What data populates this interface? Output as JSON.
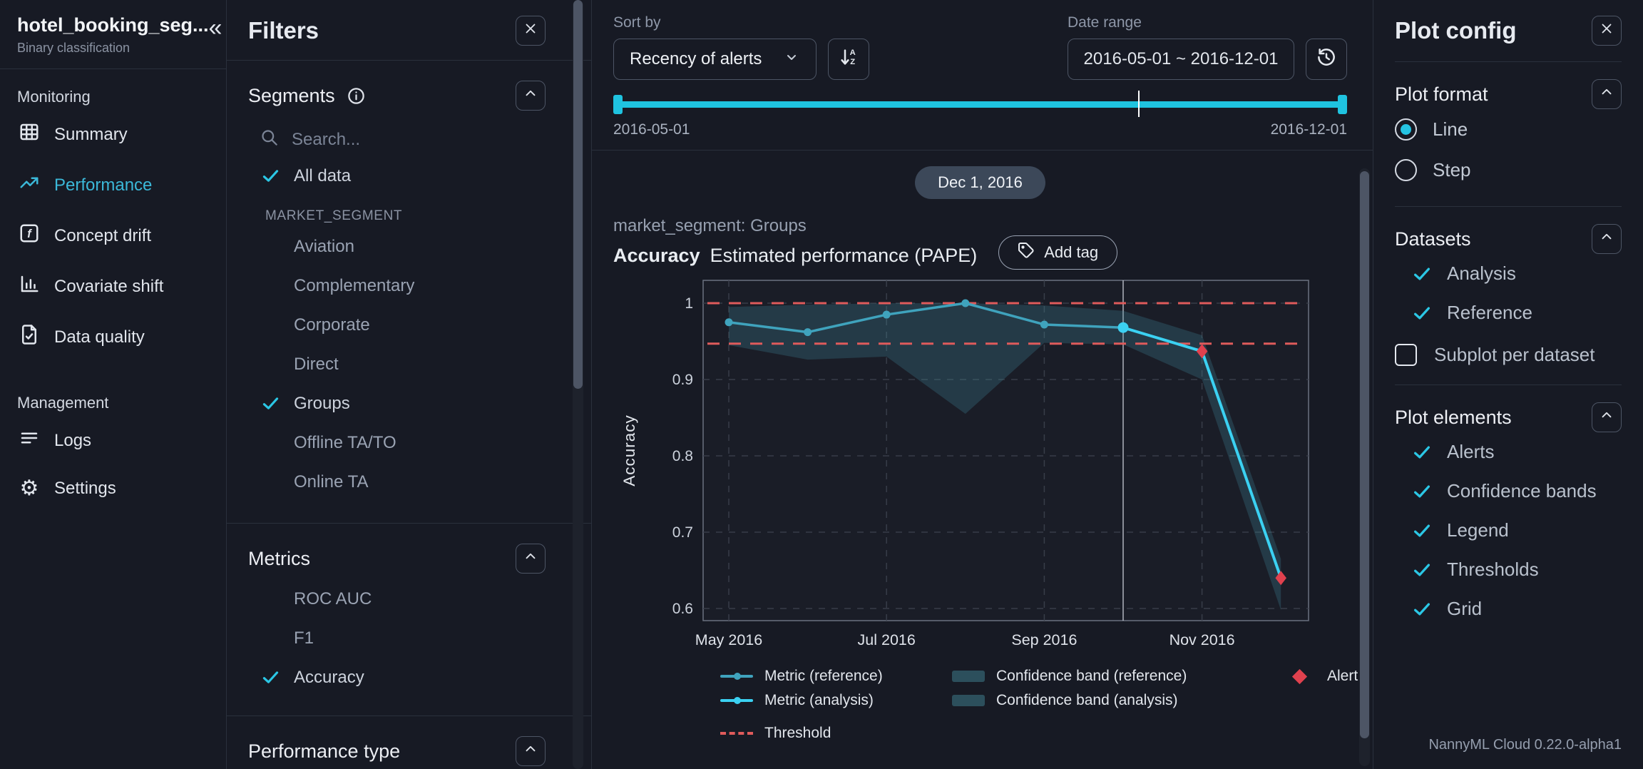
{
  "app": {
    "footer": "NannyML Cloud 0.22.0-alpha1"
  },
  "sidebar": {
    "title": "hotel_booking_seg...",
    "subtitle": "Binary classification",
    "collapse_icon": "«",
    "monitoring_label": "Monitoring",
    "management_label": "Management",
    "monitoring_items": [
      {
        "label": "Summary",
        "icon": "grid-icon",
        "active": false
      },
      {
        "label": "Performance",
        "icon": "trend-up-icon",
        "active": true
      },
      {
        "label": "Concept drift",
        "icon": "function-icon",
        "active": false
      },
      {
        "label": "Covariate shift",
        "icon": "bar-chart-icon",
        "active": false
      },
      {
        "label": "Data quality",
        "icon": "file-check-icon",
        "active": false
      }
    ],
    "management_items": [
      {
        "label": "Logs",
        "icon": "lines-icon"
      },
      {
        "label": "Settings",
        "icon": "gear-icon"
      }
    ]
  },
  "filters": {
    "title": "Filters",
    "segments": {
      "title": "Segments",
      "search_placeholder": "Search...",
      "all_data_label": "All data",
      "all_data_checked": true,
      "group_label": "MARKET_SEGMENT",
      "options": [
        {
          "label": "Aviation",
          "checked": false
        },
        {
          "label": "Complementary",
          "checked": false
        },
        {
          "label": "Corporate",
          "checked": false
        },
        {
          "label": "Direct",
          "checked": false
        },
        {
          "label": "Groups",
          "checked": true
        },
        {
          "label": "Offline TA/TO",
          "checked": false
        },
        {
          "label": "Online TA",
          "checked": false
        }
      ]
    },
    "metrics": {
      "title": "Metrics",
      "options": [
        {
          "label": "ROC AUC",
          "checked": false
        },
        {
          "label": "F1",
          "checked": false
        },
        {
          "label": "Accuracy",
          "checked": true
        }
      ]
    },
    "performance_type": {
      "title": "Performance type"
    }
  },
  "toolbar": {
    "sort_by_label": "Sort by",
    "sort_value": "Recency of alerts",
    "date_range_label": "Date range",
    "date_range_value": "2016-05-01 ~ 2016-12-01",
    "slider": {
      "start_label": "2016-05-01",
      "end_label": "2016-12-01",
      "marker_pos_pct": 71.5
    }
  },
  "chart_header": {
    "date_badge": "Dec 1, 2016",
    "segment": "market_segment: Groups",
    "metric": "Accuracy",
    "subtitle": "Estimated performance (PAPE)",
    "add_tag_label": "Add tag"
  },
  "chart_data": {
    "type": "line",
    "title": "Accuracy — Estimated performance (PAPE) — market_segment: Groups",
    "xlabel": "",
    "ylabel": "Accuracy",
    "ylim": [
      0.585,
      1.03
    ],
    "yticks": [
      1,
      0.9,
      0.8,
      0.7,
      0.6
    ],
    "x_months": [
      "2016-05-01",
      "2016-06-01",
      "2016-07-01",
      "2016-08-01",
      "2016-09-01",
      "2016-10-01",
      "2016-11-01",
      "2016-12-01"
    ],
    "xtick_labels": [
      "May 2016",
      "Jul 2016",
      "Sep 2016",
      "Nov 2016"
    ],
    "xtick_positions": [
      0,
      2,
      4,
      6
    ],
    "analysis_start_x": 5,
    "threshold_upper": 1.0,
    "threshold_lower": 0.947,
    "grid": true,
    "legend_position": "bottom",
    "series": [
      {
        "name": "Metric (reference)",
        "x": [
          0,
          1,
          2,
          3,
          4,
          5
        ],
        "values": [
          0.975,
          0.962,
          0.985,
          1.0,
          0.972,
          0.968
        ]
      },
      {
        "name": "Metric (analysis)",
        "x": [
          5,
          6,
          7
        ],
        "values": [
          0.968,
          0.937,
          0.64
        ]
      }
    ],
    "confidence_bands": [
      {
        "name": "reference",
        "x": [
          0,
          1,
          2,
          3,
          4,
          5
        ],
        "upper": [
          0.995,
          0.998,
          1.0,
          1.0,
          0.997,
          0.99
        ],
        "lower": [
          0.945,
          0.926,
          0.93,
          0.855,
          0.948,
          0.946
        ]
      },
      {
        "name": "analysis",
        "x": [
          5,
          6,
          7
        ],
        "upper": [
          0.99,
          0.958,
          0.665
        ],
        "lower": [
          0.946,
          0.9,
          0.598
        ]
      }
    ],
    "alerts": [
      {
        "x": 6,
        "value": 0.937
      },
      {
        "x": 7,
        "value": 0.64
      }
    ],
    "colors": {
      "metric_reference": "#3fa3bd",
      "metric_analysis": "#3bd1f2",
      "confidence_band": "rgba(63,138,155,0.28)",
      "threshold": "#df5b5b",
      "alert": "#e0414e",
      "grid_line": "#383d49",
      "plot_border": "#6b7280",
      "divider_line": "#c9ced8"
    }
  },
  "legend": {
    "items": [
      {
        "label": "Metric (reference)"
      },
      {
        "label": "Confidence band (reference)"
      },
      {
        "label": "Alert"
      },
      {
        "label": "Metric (analysis)"
      },
      {
        "label": "Confidence band (analysis)"
      },
      {
        "label": "Threshold"
      }
    ]
  },
  "plot_config": {
    "title": "Plot config",
    "plot_format": {
      "title": "Plot format",
      "options": [
        {
          "label": "Line",
          "selected": true
        },
        {
          "label": "Step",
          "selected": false
        }
      ]
    },
    "datasets": {
      "title": "Datasets",
      "options": [
        {
          "label": "Analysis",
          "checked": true
        },
        {
          "label": "Reference",
          "checked": true
        }
      ],
      "subplot_label": "Subplot per dataset",
      "subplot_checked": false
    },
    "plot_elements": {
      "title": "Plot elements",
      "options": [
        {
          "label": "Alerts",
          "checked": true
        },
        {
          "label": "Confidence bands",
          "checked": true
        },
        {
          "label": "Legend",
          "checked": true
        },
        {
          "label": "Thresholds",
          "checked": true
        },
        {
          "label": "Grid",
          "checked": true
        }
      ]
    }
  }
}
